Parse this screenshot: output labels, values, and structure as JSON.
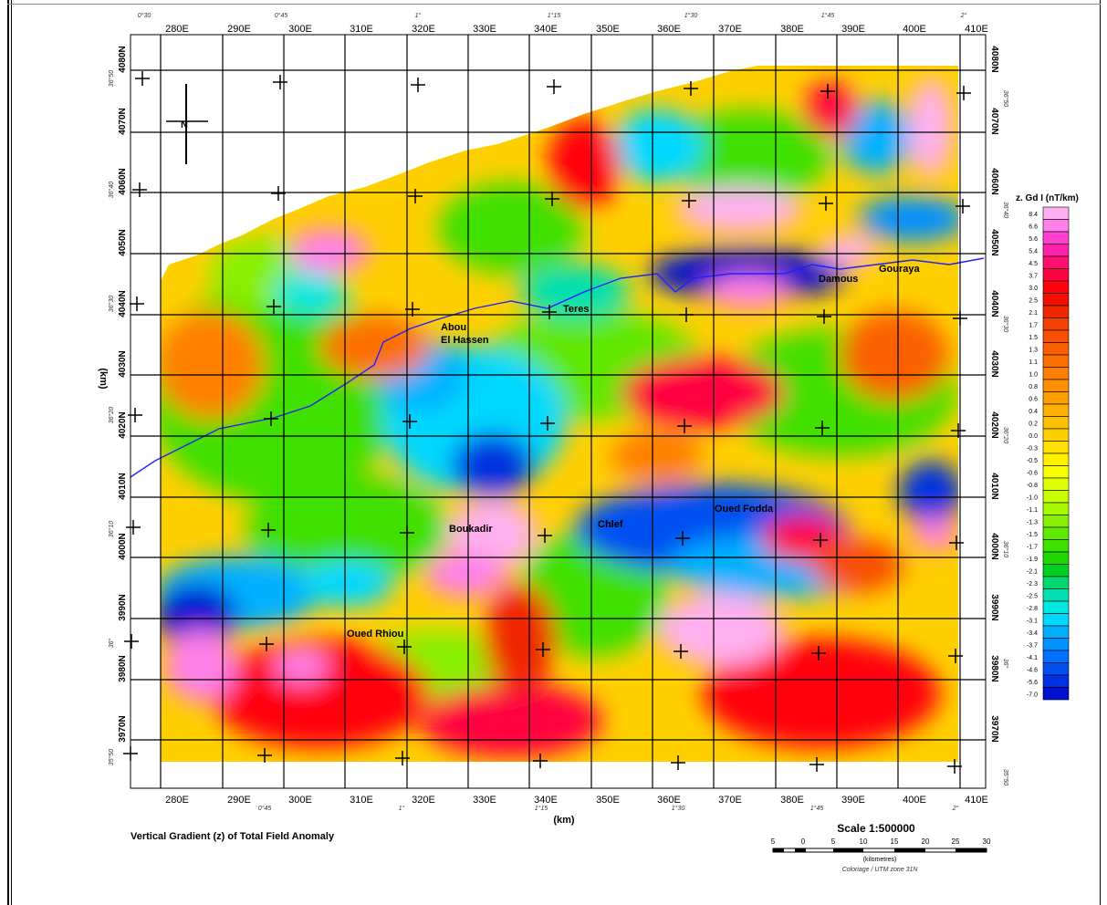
{
  "map": {
    "top_degree_labels": [
      "0°30",
      "0°45",
      "1°",
      "1°15",
      "1°30",
      "1°45",
      "2°"
    ],
    "bottom_degree_labels": [
      "0°45",
      "1°",
      "1°15",
      "1°30",
      "1°45",
      "2°"
    ],
    "easting_labels": [
      "280E",
      "290E",
      "300E",
      "310E",
      "320E",
      "330E",
      "340E",
      "350E",
      "360E",
      "370E",
      "380E",
      "390E",
      "400E",
      "410E"
    ],
    "northing_labels": [
      "4080N",
      "4070N",
      "4060N",
      "4050N",
      "4040N",
      "4030N",
      "4020N",
      "4010N",
      "4000N",
      "3990N",
      "3980N",
      "3970N"
    ],
    "left_lat_labels": [
      "36°50",
      "36°40",
      "36°30",
      "36°20",
      "36°10",
      "36°",
      "35°50"
    ],
    "right_lat_labels": [
      "36°50",
      "36°40",
      "36°30",
      "36°20",
      "36°10",
      "36°",
      "35°50"
    ],
    "x_axis_unit": "(km)",
    "y_axis_unit": "(km)",
    "north_label": "N",
    "place_names": {
      "teres": "Teres",
      "abou": "Abou",
      "el_hassen": "El Hassen",
      "damous": "Damous",
      "gouraya": "Gouraya",
      "boukadir": "Boukadir",
      "chlef": "Chlef",
      "oued_fodda": "Oued Fodda",
      "oued_rhiou": "Oued Rhiou"
    },
    "caption": "Vertical Gradient (z) of Total Field Anomaly"
  },
  "scale": {
    "title": "Scale 1:500000",
    "ticks": [
      "5",
      "0",
      "5",
      "10",
      "15",
      "20",
      "25",
      "30"
    ],
    "unit": "(kilometres)",
    "note": "Coloriage / UTM zone 31N"
  },
  "legend": {
    "title": "z. Gd I (nT/km)",
    "values": [
      "8.4",
      "6.6",
      "5.6",
      "5.4",
      "4.5",
      "3.7",
      "3.0",
      "2.5",
      "2.1",
      "1.7",
      "1.5",
      "1.3",
      "1.1",
      "1.0",
      "0.8",
      "0.6",
      "0.4",
      "0.2",
      "0.0",
      "-0.3",
      "-0.5",
      "-0.6",
      "-0.8",
      "-1.0",
      "-1.1",
      "-1.3",
      "-1.5",
      "-1.7",
      "-1.9",
      "-2.1",
      "-2.3",
      "-2.5",
      "-2.8",
      "-3.1",
      "-3.4",
      "-3.7",
      "-4.1",
      "-4.6",
      "-5.6",
      "-7.0"
    ],
    "colors": [
      "#ffb0f0",
      "#ff80e8",
      "#ff40d0",
      "#ff20a8",
      "#ff1070",
      "#ff0040",
      "#ff0010",
      "#f01000",
      "#f02800",
      "#f44000",
      "#f85000",
      "#fa6000",
      "#fc7000",
      "#ff8000",
      "#ff9000",
      "#ffa000",
      "#ffb000",
      "#ffc000",
      "#ffd000",
      "#ffe000",
      "#fff000",
      "#f8ff00",
      "#e0ff00",
      "#c8ff00",
      "#a8f800",
      "#88f000",
      "#60e800",
      "#40e000",
      "#20d800",
      "#00d020",
      "#00d870",
      "#00e0b0",
      "#00e8e0",
      "#00d8ff",
      "#00b0ff",
      "#0090ff",
      "#0070ff",
      "#0050f0",
      "#0030e0",
      "#0010d0"
    ]
  }
}
